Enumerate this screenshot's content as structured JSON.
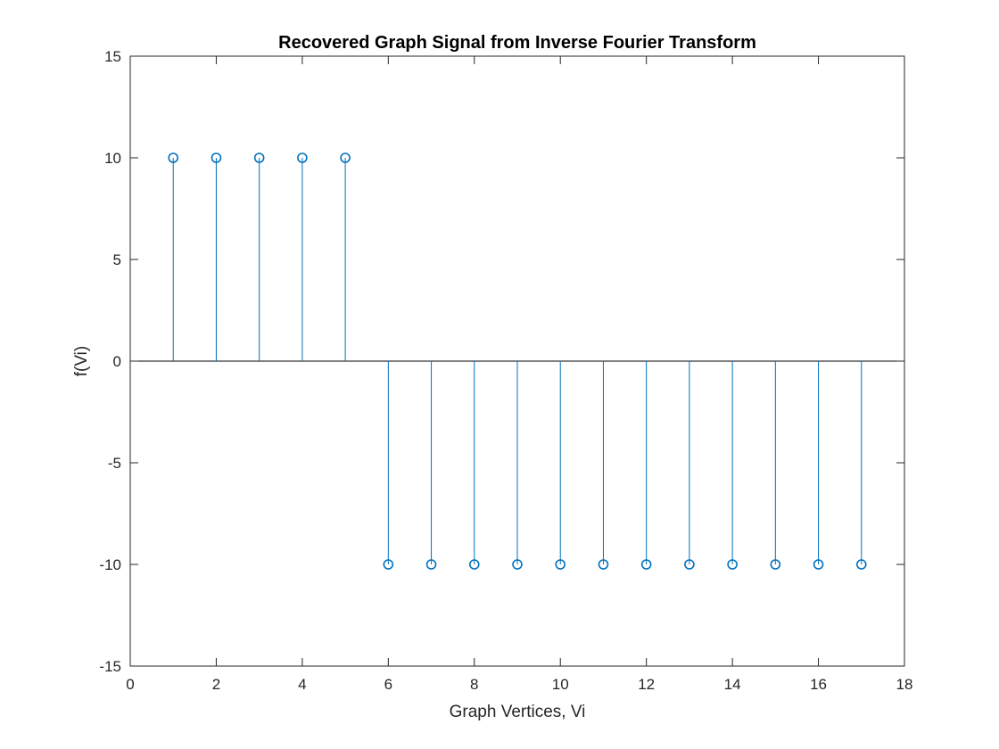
{
  "chart_data": {
    "type": "stem",
    "title": "Recovered Graph Signal from Inverse Fourier Transform",
    "xlabel": "Graph Vertices, Vi",
    "ylabel": "f(Vi)",
    "xlim": [
      0,
      18
    ],
    "ylim": [
      -15,
      15
    ],
    "xticks": [
      0,
      2,
      4,
      6,
      8,
      10,
      12,
      14,
      16,
      18
    ],
    "yticks": [
      -15,
      -10,
      -5,
      0,
      5,
      10,
      15
    ],
    "baseline": 0,
    "grid": false,
    "legend": "none",
    "marker": "open-circle",
    "series": [
      {
        "color": "#0072BD",
        "x": [
          1,
          2,
          3,
          4,
          5,
          6,
          7,
          8,
          9,
          10,
          11,
          12,
          13,
          14,
          15,
          16,
          17
        ],
        "y": [
          10,
          10,
          10,
          10,
          10,
          -10,
          -10,
          -10,
          -10,
          -10,
          -10,
          -10,
          -10,
          -10,
          -10,
          -10,
          -10
        ]
      }
    ]
  }
}
